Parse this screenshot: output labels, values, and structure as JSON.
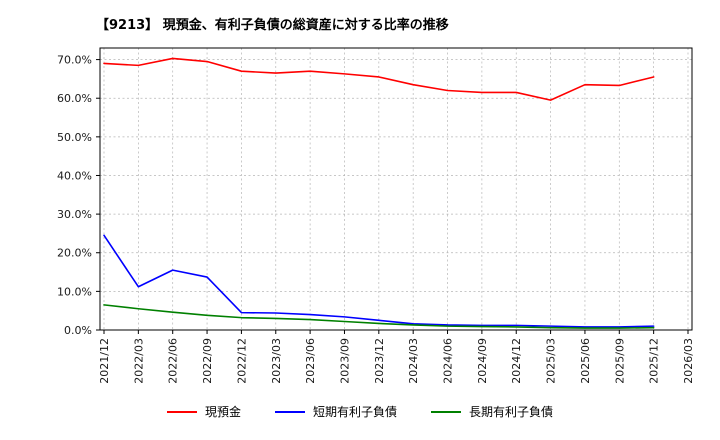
{
  "chart_data": {
    "type": "line",
    "title": "【9213】 現預金、有利子負債の総資産に対する比率の推移",
    "categories": [
      "2021/12",
      "2022/03",
      "2022/06",
      "2022/09",
      "2022/12",
      "2023/03",
      "2023/06",
      "2023/09",
      "2023/12",
      "2024/03",
      "2024/06",
      "2024/09",
      "2024/12",
      "2025/03",
      "2025/06",
      "2025/09",
      "2025/12",
      "2026/03"
    ],
    "ylim": [
      0,
      73
    ],
    "ytick_step": 10,
    "ytick_format": "percent_one_decimal",
    "grid": "dashed",
    "legend_position": "bottom",
    "background_color": "#ffffff",
    "series": [
      {
        "name": "現預金",
        "color": "#ff0000",
        "values": [
          69.0,
          68.5,
          70.3,
          69.5,
          67.0,
          66.5,
          67.0,
          66.3,
          65.5,
          63.5,
          62.0,
          61.5,
          61.5,
          59.5,
          63.5,
          63.3,
          65.5,
          null
        ]
      },
      {
        "name": "短期有利子負債",
        "color": "#0000ff",
        "values": [
          24.5,
          11.2,
          15.5,
          13.7,
          4.5,
          4.4,
          4.0,
          3.4,
          2.5,
          1.6,
          1.3,
          1.2,
          1.2,
          1.0,
          0.8,
          0.8,
          1.0,
          null
        ]
      },
      {
        "name": "長期有利子負債",
        "color": "#008000",
        "values": [
          6.5,
          5.5,
          4.6,
          3.8,
          3.2,
          3.0,
          2.7,
          2.2,
          1.7,
          1.3,
          1.0,
          0.9,
          0.8,
          0.6,
          0.5,
          0.5,
          0.6,
          null
        ]
      }
    ]
  }
}
